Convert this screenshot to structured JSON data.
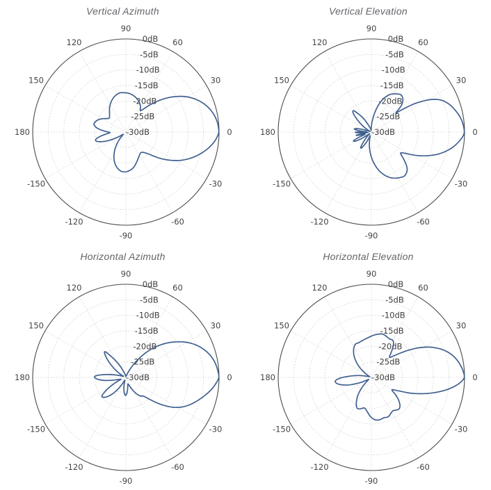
{
  "style": {
    "background": "#ffffff",
    "curve_color": "#40608f",
    "outer_ring_color": "#494949",
    "ring_grid_color": "#c6c6c6",
    "spoke_grid_color": "#cdcdd0",
    "angle_label_color": "#434343",
    "db_label_color": "#3d3d3d",
    "title_color": "#63656a"
  },
  "axes": {
    "r_range_db": [
      -30,
      0
    ],
    "grid": "dotted",
    "angle_ticks": [
      {
        "deg": 0,
        "label": "0"
      },
      {
        "deg": 30,
        "label": "30"
      },
      {
        "deg": 60,
        "label": "60"
      },
      {
        "deg": 90,
        "label": "90"
      },
      {
        "deg": 120,
        "label": "120"
      },
      {
        "deg": 150,
        "label": "150"
      },
      {
        "deg": 180,
        "label": "180"
      },
      {
        "deg": 210,
        "label": "-150"
      },
      {
        "deg": 240,
        "label": "-120"
      },
      {
        "deg": 270,
        "label": "-90"
      },
      {
        "deg": 300,
        "label": "-60"
      },
      {
        "deg": 330,
        "label": "-30"
      }
    ],
    "db_ticks": [
      {
        "db": 0,
        "label": "0dB"
      },
      {
        "db": -5,
        "label": "-5dB"
      },
      {
        "db": -10,
        "label": "-10dB"
      },
      {
        "db": -15,
        "label": "-15dB"
      },
      {
        "db": -20,
        "label": "-20dB"
      },
      {
        "db": -25,
        "label": "-25dB"
      },
      {
        "db": -30,
        "label": "-30dB"
      }
    ]
  },
  "chart_data": [
    {
      "type": "polar-line",
      "title": "Vertical Azimuth",
      "units": "dB",
      "angle_unit": "deg",
      "points": [
        [
          0,
          -0.1
        ],
        [
          5,
          -0.3
        ],
        [
          10,
          -0.9
        ],
        [
          15,
          -1.9
        ],
        [
          20,
          -3.3
        ],
        [
          25,
          -5.1
        ],
        [
          30,
          -7.3
        ],
        [
          35,
          -10
        ],
        [
          40,
          -13
        ],
        [
          45,
          -16.2
        ],
        [
          50,
          -19.2
        ],
        [
          53,
          -20.8
        ],
        [
          56,
          -21.7
        ],
        [
          60,
          -20.6
        ],
        [
          65,
          -19.6
        ],
        [
          70,
          -18.9
        ],
        [
          76,
          -18.2
        ],
        [
          82,
          -17.7
        ],
        [
          88,
          -17.4
        ],
        [
          94,
          -17.3
        ],
        [
          98,
          -17.2
        ],
        [
          103,
          -17.5
        ],
        [
          108,
          -18
        ],
        [
          113,
          -18.7
        ],
        [
          118,
          -19.5
        ],
        [
          124,
          -20.6
        ],
        [
          130,
          -21.8
        ],
        [
          136,
          -22.7
        ],
        [
          140,
          -23
        ],
        [
          144,
          -22.6
        ],
        [
          148,
          -21.8
        ],
        [
          153,
          -20.8
        ],
        [
          158,
          -20
        ],
        [
          162,
          -19.6
        ],
        [
          166,
          -19.4
        ],
        [
          170,
          -20
        ],
        [
          174,
          -21.4
        ],
        [
          178,
          -23.4
        ],
        [
          182,
          -24.9
        ],
        [
          186,
          -23.4
        ],
        [
          190,
          -21.4
        ],
        [
          193,
          -20.2
        ],
        [
          196,
          -19.9
        ],
        [
          200,
          -20.9
        ],
        [
          205,
          -23.2
        ],
        [
          210,
          -25.9
        ],
        [
          215,
          -27.9
        ],
        [
          220,
          -28.9
        ],
        [
          225,
          -28.2
        ],
        [
          230,
          -26.4
        ],
        [
          236,
          -24
        ],
        [
          242,
          -21.9
        ],
        [
          248,
          -20
        ],
        [
          254,
          -18.6
        ],
        [
          260,
          -17.6
        ],
        [
          265,
          -17.2
        ],
        [
          270,
          -17.2
        ],
        [
          276,
          -17.6
        ],
        [
          282,
          -18.3
        ],
        [
          288,
          -19.4
        ],
        [
          294,
          -20.5
        ],
        [
          300,
          -21.3
        ],
        [
          306,
          -21.8
        ],
        [
          311,
          -21.3
        ],
        [
          316,
          -19.8
        ],
        [
          320,
          -17.6
        ],
        [
          324,
          -15.2
        ],
        [
          328,
          -12.8
        ],
        [
          332,
          -10.5
        ],
        [
          336,
          -8.5
        ],
        [
          340,
          -6.6
        ],
        [
          344,
          -4.9
        ],
        [
          348,
          -3.3
        ],
        [
          352,
          -1.9
        ],
        [
          356,
          -0.8
        ]
      ]
    },
    {
      "type": "polar-line",
      "title": "Vertical Elevation",
      "units": "dB",
      "angle_unit": "deg",
      "points": [
        [
          0,
          -0.1
        ],
        [
          5,
          -0.4
        ],
        [
          10,
          -1.1
        ],
        [
          15,
          -2.2
        ],
        [
          20,
          -3.5
        ],
        [
          25,
          -5.5
        ],
        [
          29,
          -8.5
        ],
        [
          33,
          -13
        ],
        [
          36,
          -17.5
        ],
        [
          38,
          -20
        ],
        [
          41,
          -17.5
        ],
        [
          44,
          -16
        ],
        [
          48,
          -15
        ],
        [
          52,
          -14.7
        ],
        [
          56,
          -15.2
        ],
        [
          60,
          -15.8
        ],
        [
          64,
          -16.6
        ],
        [
          68,
          -17.8
        ],
        [
          72,
          -19.4
        ],
        [
          76,
          -21.4
        ],
        [
          80,
          -23.6
        ],
        [
          85,
          -26.2
        ],
        [
          90,
          -28.2
        ],
        [
          95,
          -29.2
        ],
        [
          100,
          -29.4
        ],
        [
          104,
          -28.8
        ],
        [
          110,
          -28.2
        ],
        [
          116,
          -26.6
        ],
        [
          121,
          -24.6
        ],
        [
          126,
          -22.6
        ],
        [
          130,
          -21
        ],
        [
          134,
          -21.6
        ],
        [
          138,
          -23.6
        ],
        [
          143,
          -26
        ],
        [
          148,
          -28.2
        ],
        [
          153,
          -29.4
        ],
        [
          158,
          -29.3
        ],
        [
          162,
          -27.8
        ],
        [
          166,
          -25.6
        ],
        [
          170,
          -24.4
        ],
        [
          174,
          -26.2
        ],
        [
          177,
          -28.4
        ],
        [
          181,
          -24.8
        ],
        [
          185,
          -27.6
        ],
        [
          188,
          -28.8
        ],
        [
          192,
          -25
        ],
        [
          196,
          -27.2
        ],
        [
          200,
          -27.8
        ],
        [
          203,
          -25.6
        ],
        [
          206,
          -23.6
        ],
        [
          210,
          -24.2
        ],
        [
          214,
          -26.6
        ],
        [
          218,
          -28.6
        ],
        [
          222,
          -29.2
        ],
        [
          226,
          -28.4
        ],
        [
          231,
          -26
        ],
        [
          236,
          -23.8
        ],
        [
          241,
          -25
        ],
        [
          246,
          -27.2
        ],
        [
          251,
          -28.8
        ],
        [
          256,
          -27.8
        ],
        [
          262,
          -25.4
        ],
        [
          268,
          -22.8
        ],
        [
          274,
          -20.2
        ],
        [
          280,
          -17.8
        ],
        [
          286,
          -15.8
        ],
        [
          292,
          -14.2
        ],
        [
          298,
          -13.2
        ],
        [
          303,
          -12.6
        ],
        [
          307,
          -12.3
        ],
        [
          312,
          -12.9
        ],
        [
          316,
          -14.2
        ],
        [
          321,
          -17
        ],
        [
          324,
          -18.4
        ],
        [
          327,
          -17.6
        ],
        [
          330,
          -15.6
        ],
        [
          334,
          -12.6
        ],
        [
          338,
          -9.8
        ],
        [
          342,
          -7.2
        ],
        [
          346,
          -5
        ],
        [
          350,
          -3.1
        ],
        [
          354,
          -1.6
        ],
        [
          357,
          -0.6
        ]
      ]
    },
    {
      "type": "polar-line",
      "title": "Horizontal Azimuth",
      "units": "dB",
      "angle_unit": "deg",
      "points": [
        [
          0,
          -0.1
        ],
        [
          5,
          -0.4
        ],
        [
          10,
          -1
        ],
        [
          15,
          -2
        ],
        [
          20,
          -3.4
        ],
        [
          25,
          -5.2
        ],
        [
          30,
          -7.4
        ],
        [
          35,
          -10
        ],
        [
          40,
          -12.8
        ],
        [
          45,
          -15.8
        ],
        [
          50,
          -19
        ],
        [
          55,
          -22.5
        ],
        [
          60,
          -25.5
        ],
        [
          65,
          -27.8
        ],
        [
          72,
          -29.2
        ],
        [
          80,
          -29.6
        ],
        [
          90,
          -29.7
        ],
        [
          100,
          -29.4
        ],
        [
          108,
          -28.6
        ],
        [
          114,
          -27
        ],
        [
          120,
          -24.5
        ],
        [
          125,
          -21.8
        ],
        [
          129,
          -19.3
        ],
        [
          133,
          -20.3
        ],
        [
          138,
          -22.8
        ],
        [
          144,
          -25.8
        ],
        [
          150,
          -28
        ],
        [
          156,
          -29.2
        ],
        [
          162,
          -28.4
        ],
        [
          167,
          -26.4
        ],
        [
          172,
          -23.4
        ],
        [
          176,
          -20.8
        ],
        [
          179,
          -19.9
        ],
        [
          183,
          -20.6
        ],
        [
          188,
          -23
        ],
        [
          193,
          -26.3
        ],
        [
          199,
          -28.3
        ],
        [
          204,
          -27.5
        ],
        [
          209,
          -25
        ],
        [
          214,
          -22
        ],
        [
          218,
          -20.2
        ],
        [
          223,
          -20.6
        ],
        [
          229,
          -22.4
        ],
        [
          235,
          -25
        ],
        [
          241,
          -27.6
        ],
        [
          247,
          -29
        ],
        [
          253,
          -28.6
        ],
        [
          259,
          -26.6
        ],
        [
          265,
          -24.8
        ],
        [
          269,
          -24.2
        ],
        [
          274,
          -25
        ],
        [
          280,
          -26.6
        ],
        [
          286,
          -27.8
        ],
        [
          292,
          -27.3
        ],
        [
          298,
          -25.4
        ],
        [
          304,
          -23.4
        ],
        [
          309,
          -22.2
        ],
        [
          313,
          -21.8
        ],
        [
          317,
          -19.8
        ],
        [
          321,
          -16.8
        ],
        [
          325,
          -13.8
        ],
        [
          329,
          -11.2
        ],
        [
          333,
          -9.2
        ],
        [
          338,
          -7.2
        ],
        [
          343,
          -5.4
        ],
        [
          348,
          -3.6
        ],
        [
          352,
          -2.2
        ],
        [
          356,
          -1
        ]
      ]
    },
    {
      "type": "polar-line",
      "title": "Horizontal Elevation",
      "units": "dB",
      "angle_unit": "deg",
      "points": [
        [
          0,
          -0.1
        ],
        [
          4,
          -0.4
        ],
        [
          8,
          -1.1
        ],
        [
          12,
          -2
        ],
        [
          16,
          -3.2
        ],
        [
          20,
          -4.8
        ],
        [
          24,
          -6.8
        ],
        [
          28,
          -9.2
        ],
        [
          32,
          -12
        ],
        [
          36,
          -15
        ],
        [
          40,
          -17.8
        ],
        [
          44,
          -20
        ],
        [
          48,
          -21.3
        ],
        [
          52,
          -19.5
        ],
        [
          56,
          -17.3
        ],
        [
          60,
          -16.2
        ],
        [
          65,
          -16.3
        ],
        [
          70,
          -15.9
        ],
        [
          76,
          -15.6
        ],
        [
          81,
          -15.9
        ],
        [
          86,
          -16.3
        ],
        [
          92,
          -16.9
        ],
        [
          98,
          -17.4
        ],
        [
          104,
          -17.8
        ],
        [
          110,
          -18.1
        ],
        [
          115,
          -18.1
        ],
        [
          120,
          -18.8
        ],
        [
          125,
          -20
        ],
        [
          130,
          -21.5
        ],
        [
          135,
          -23.3
        ],
        [
          140,
          -25.3
        ],
        [
          145,
          -27.2
        ],
        [
          150,
          -28.7
        ],
        [
          156,
          -29.4
        ],
        [
          161,
          -29.2
        ],
        [
          166,
          -28.4
        ],
        [
          171,
          -26.2
        ],
        [
          177,
          -22.8
        ],
        [
          182,
          -19.6
        ],
        [
          186,
          -18.3
        ],
        [
          191,
          -19
        ],
        [
          197,
          -21.6
        ],
        [
          203,
          -25
        ],
        [
          209,
          -27.8
        ],
        [
          215,
          -28.9
        ],
        [
          221,
          -28.2
        ],
        [
          227,
          -25.6
        ],
        [
          233,
          -22.8
        ],
        [
          239,
          -20.6
        ],
        [
          245,
          -19.1
        ],
        [
          251,
          -19.3
        ],
        [
          257,
          -19.9
        ],
        [
          263,
          -18.9
        ],
        [
          269,
          -17.3
        ],
        [
          275,
          -16.3
        ],
        [
          281,
          -16.1
        ],
        [
          287,
          -16.4
        ],
        [
          293,
          -16.2
        ],
        [
          298,
          -16.8
        ],
        [
          303,
          -17.2
        ],
        [
          307,
          -16.8
        ],
        [
          311,
          -16.5
        ],
        [
          315,
          -17
        ],
        [
          320,
          -18.5
        ],
        [
          324,
          -20.3
        ],
        [
          329,
          -22.3
        ],
        [
          334,
          -20
        ],
        [
          338,
          -16.5
        ],
        [
          342,
          -13
        ],
        [
          346,
          -9.5
        ],
        [
          350,
          -6
        ],
        [
          354,
          -3
        ],
        [
          357,
          -1.2
        ]
      ]
    }
  ]
}
